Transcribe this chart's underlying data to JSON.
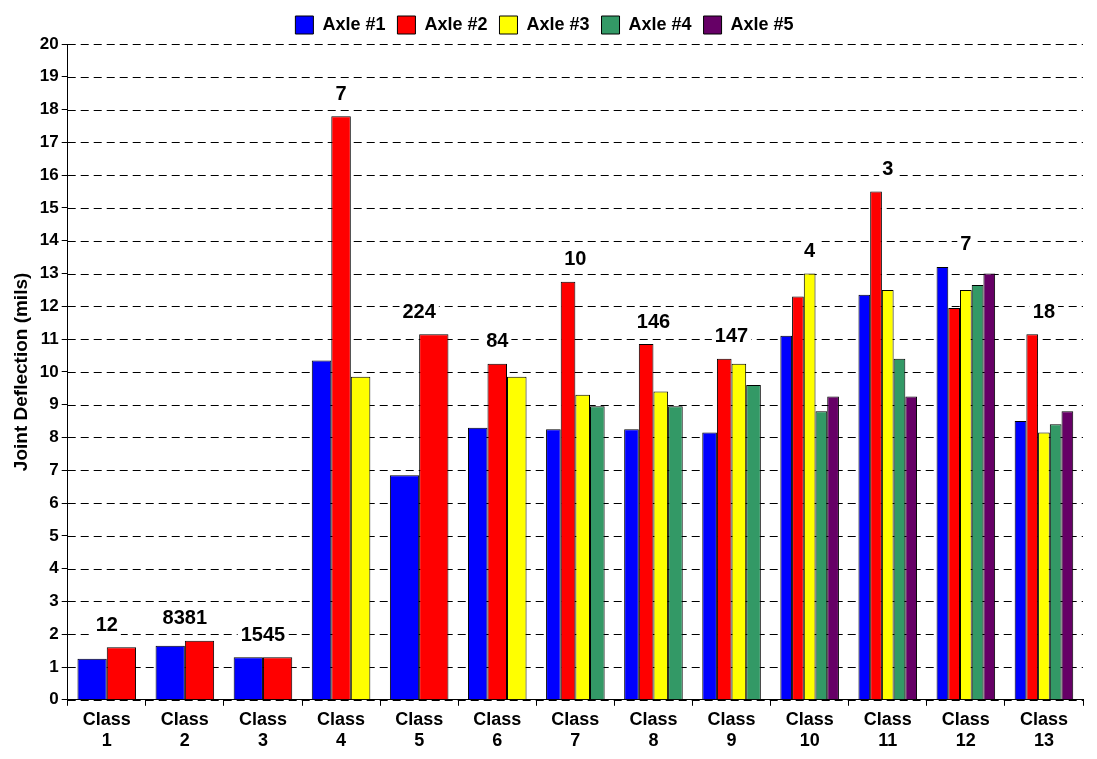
{
  "chart_data": {
    "type": "bar",
    "ylabel": "Joint Deflection (mils)",
    "categories": [
      "Class 1",
      "Class 2",
      "Class 3",
      "Class 4",
      "Class 5",
      "Class 6",
      "Class 7",
      "Class 8",
      "Class 9",
      "Class 10",
      "Class 11",
      "Class 12",
      "Class 13"
    ],
    "series": [
      {
        "name": "Axle #1",
        "color": "#0000ff",
        "values": [
          1.25,
          1.65,
          1.3,
          10.35,
          6.85,
          8.3,
          8.25,
          8.25,
          8.15,
          11.1,
          12.35,
          13.2,
          8.5
        ]
      },
      {
        "name": "Axle #2",
        "color": "#ff0000",
        "values": [
          1.6,
          1.8,
          1.3,
          17.8,
          11.15,
          10.25,
          12.75,
          10.85,
          10.4,
          12.3,
          15.5,
          11.95,
          11.15
        ]
      },
      {
        "name": "Axle #3",
        "color": "#ffff00",
        "values": [
          null,
          null,
          null,
          9.85,
          null,
          9.85,
          9.3,
          9.4,
          10.25,
          13.0,
          12.5,
          12.5,
          8.15
        ]
      },
      {
        "name": "Axle #4",
        "color": "#339966",
        "values": [
          null,
          null,
          null,
          null,
          null,
          null,
          8.95,
          8.95,
          9.6,
          8.8,
          10.4,
          12.65,
          8.4
        ]
      },
      {
        "name": "Axle #5",
        "color": "#660066",
        "values": [
          null,
          null,
          null,
          null,
          null,
          null,
          null,
          null,
          null,
          9.25,
          9.25,
          13.0,
          8.8
        ]
      }
    ],
    "ylim": [
      0,
      20
    ],
    "yticks": [
      0,
      1,
      2,
      3,
      4,
      5,
      6,
      7,
      8,
      9,
      10,
      11,
      12,
      13,
      14,
      15,
      16,
      17,
      18,
      19,
      20
    ],
    "grid": "y",
    "legend": "top",
    "annotations": [
      "12",
      "8381",
      "1545",
      "7",
      "224",
      "84",
      "10",
      "146",
      "147",
      "4",
      "3",
      "7",
      "18"
    ]
  }
}
